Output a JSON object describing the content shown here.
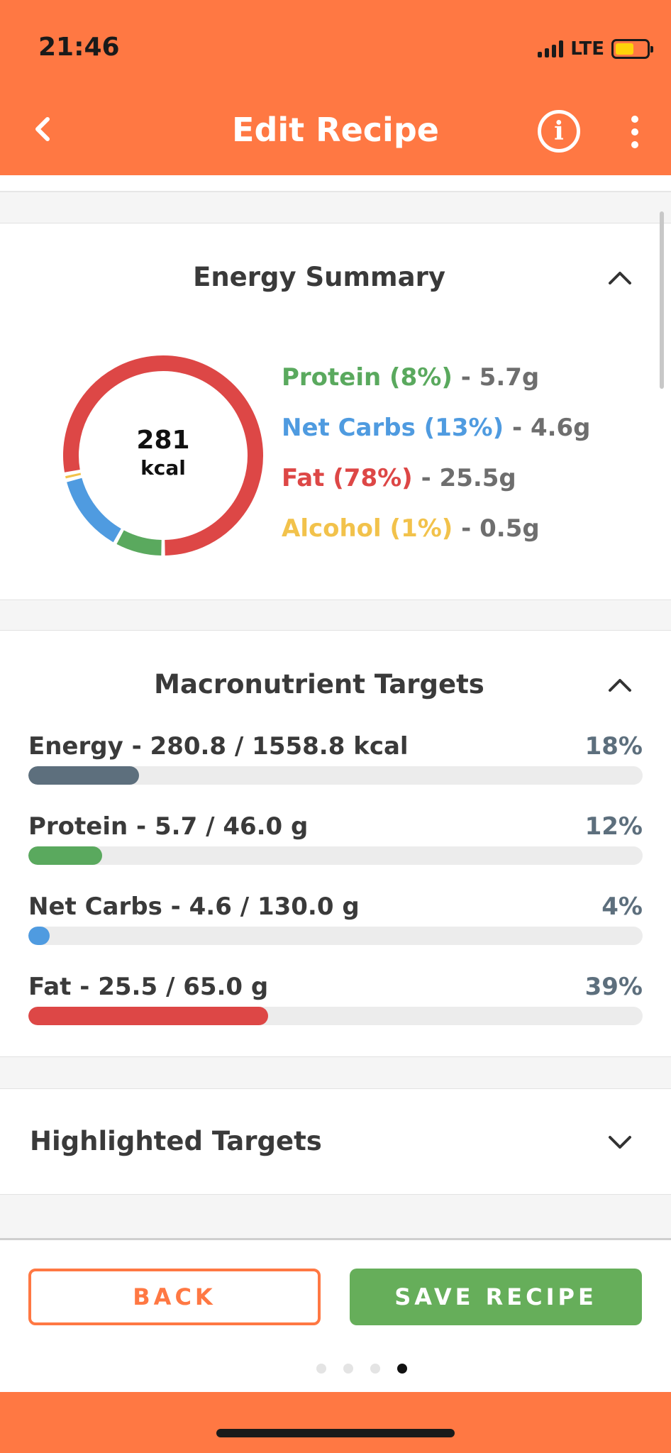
{
  "status_bar": {
    "time": "21:46",
    "network": "LTE",
    "battery_level": 0.6,
    "battery_color": "#ffd30a"
  },
  "header": {
    "title": "Edit Recipe",
    "back_icon": "chevron-left-icon",
    "info_icon": "info-icon",
    "info_glyph": "i",
    "more_icon": "more-vertical-icon",
    "background": "#ff7843"
  },
  "energy_summary": {
    "title": "Energy Summary",
    "center_value": "281",
    "center_unit": "kcal",
    "legend": [
      {
        "label": "Protein (8%)",
        "sep": " - ",
        "amount": "5.7g",
        "color": "#5aa95e",
        "percent": 8
      },
      {
        "label": "Net Carbs (13%)",
        "sep": " - ",
        "amount": "4.6g",
        "color": "#4f9be0",
        "percent": 13
      },
      {
        "label": "Fat (78%)",
        "sep": " - ",
        "amount": "25.5g",
        "color": "#dd4746",
        "percent": 78
      },
      {
        "label": "Alcohol (1%)",
        "sep": " - ",
        "amount": "0.5g",
        "color": "#f2c24b",
        "percent": 1
      }
    ]
  },
  "macronutrient_targets": {
    "title": "Macronutrient Targets",
    "items": [
      {
        "label": "Energy - 280.8 / 1558.8 kcal",
        "percent_label": "18%",
        "progress": 0.18,
        "color": "#5d6f7d"
      },
      {
        "label": "Protein - 5.7 / 46.0 g",
        "percent_label": "12%",
        "progress": 0.12,
        "color": "#5aa95e"
      },
      {
        "label": "Net Carbs - 4.6 / 130.0 g",
        "percent_label": "4%",
        "progress": 0.035,
        "color": "#4f9be0"
      },
      {
        "label": "Fat - 25.5 / 65.0 g",
        "percent_label": "39%",
        "progress": 0.39,
        "color": "#dd4746"
      }
    ]
  },
  "highlighted_targets": {
    "title": "Highlighted Targets"
  },
  "footer": {
    "back_label": "BACK",
    "save_label": "SAVE RECIPE",
    "page_count": 4,
    "active_page": 4
  }
}
